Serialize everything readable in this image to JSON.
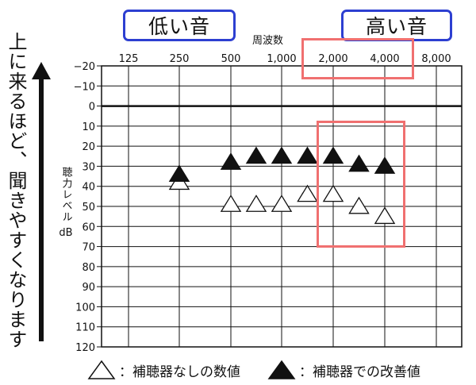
{
  "labels": {
    "low_sound": "低い音",
    "high_sound": "高い音",
    "side_caption": "上に来るほど、聞きやすくなります",
    "y_title": "聴力レベル",
    "y_unit": "dB",
    "x_title": "周波数"
  },
  "chart_data": {
    "type": "scatter",
    "x_ticks": [
      "125",
      "250",
      "500",
      "1,000",
      "2,000",
      "4,000",
      "8,000"
    ],
    "y_ticks": [
      "−20",
      "−10",
      "0",
      "10",
      "20",
      "30",
      "40",
      "50",
      "60",
      "70",
      "80",
      "90",
      "100",
      "110",
      "120"
    ],
    "y_values": [
      -20,
      -10,
      0,
      10,
      20,
      30,
      40,
      50,
      60,
      70,
      80,
      90,
      100,
      110,
      120
    ],
    "xlabel": "周波数",
    "ylabel": "聴力レベル dB",
    "ylim": [
      -20,
      120
    ],
    "y_inverted": true,
    "series": [
      {
        "name": "補聴器なしの数値",
        "marker": "open-triangle",
        "points": [
          {
            "x": 250,
            "y": 38
          },
          {
            "x": 500,
            "y": 49
          },
          {
            "x": 707,
            "y": 49
          },
          {
            "x": 1000,
            "y": 49
          },
          {
            "x": 1414,
            "y": 44
          },
          {
            "x": 2000,
            "y": 44
          },
          {
            "x": 2828,
            "y": 50
          },
          {
            "x": 4000,
            "y": 55
          }
        ]
      },
      {
        "name": "補聴器での改善値",
        "marker": "filled-triangle",
        "points": [
          {
            "x": 250,
            "y": 34
          },
          {
            "x": 500,
            "y": 28
          },
          {
            "x": 707,
            "y": 25
          },
          {
            "x": 1000,
            "y": 25
          },
          {
            "x": 1414,
            "y": 25
          },
          {
            "x": 2000,
            "y": 25
          },
          {
            "x": 2828,
            "y": 29
          },
          {
            "x": 4000,
            "y": 30
          }
        ]
      }
    ],
    "colors": {
      "marker": "#111111",
      "highlight": "#f07070",
      "label_border": "#2d3fd1"
    }
  }
}
